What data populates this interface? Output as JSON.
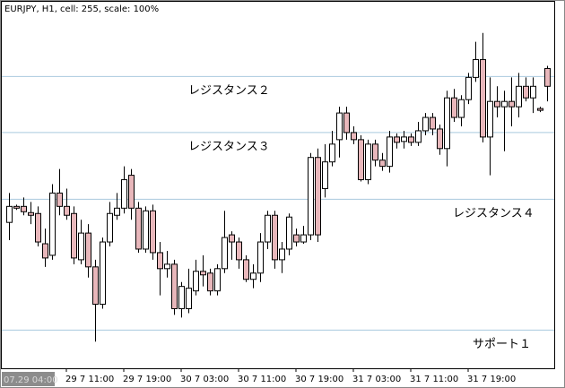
{
  "chart_data": {
    "type": "candlestick",
    "title": "EURJPY, H1, cell: 255, scale: 100%",
    "cursor_label": "07.29 04:00",
    "categories": [
      null,
      null,
      null,
      null,
      null,
      null,
      null,
      null,
      "29 7 11:00",
      null,
      null,
      null,
      null,
      null,
      null,
      null,
      "29 7 19:00",
      null,
      null,
      null,
      null,
      null,
      null,
      null,
      "30 7 03:00",
      null,
      null,
      null,
      null,
      null,
      null,
      null,
      "30 7 11:00",
      null,
      null,
      null,
      null,
      null,
      null,
      null,
      "30 7 19:00",
      null,
      null,
      null,
      null,
      null,
      null,
      null,
      "31 7 03:00",
      null,
      null,
      null,
      null,
      null,
      null,
      null,
      "31 7 11:00",
      null,
      null,
      null,
      null,
      null,
      null,
      null,
      "31 7 19:00",
      null,
      null,
      null,
      null,
      null,
      null,
      null,
      null,
      null,
      null,
      null
    ],
    "open": [
      164,
      182,
      182,
      175,
      174,
      140,
      127,
      197,
      182,
      174,
      122,
      152,
      114,
      72,
      142,
      172,
      180,
      217,
      180,
      134,
      177,
      130,
      112,
      117,
      67,
      67,
      87,
      109,
      107,
      87,
      112,
      150,
      142,
      122,
      100,
      107,
      142,
      172,
      122,
      134,
      150,
      142,
      150,
      237,
      202,
      232,
      257,
      287,
      265,
      257,
      212,
      252,
      234,
      227,
      260,
      255,
      260,
      254,
      267,
      282,
      269,
      247,
      304,
      282,
      302,
      327,
      347,
      260,
      300,
      294,
      300,
      294,
      317,
      304,
      292,
      337
    ],
    "high": [
      197,
      184,
      192,
      187,
      182,
      157,
      207,
      224,
      202,
      182,
      167,
      162,
      122,
      147,
      187,
      197,
      227,
      224,
      187,
      182,
      184,
      142,
      132,
      122,
      97,
      112,
      122,
      127,
      112,
      117,
      177,
      154,
      147,
      127,
      117,
      152,
      177,
      177,
      142,
      174,
      157,
      160,
      242,
      247,
      252,
      267,
      294,
      294,
      272,
      262,
      257,
      257,
      242,
      267,
      264,
      267,
      264,
      277,
      287,
      287,
      274,
      312,
      314,
      307,
      332,
      367,
      377,
      327,
      317,
      312,
      327,
      332,
      327,
      327,
      294,
      340
    ],
    "low": [
      144,
      178,
      172,
      162,
      137,
      114,
      122,
      172,
      167,
      117,
      117,
      102,
      30,
      67,
      137,
      167,
      174,
      167,
      130,
      130,
      122,
      82,
      102,
      60,
      57,
      62,
      82,
      92,
      82,
      82,
      107,
      122,
      112,
      97,
      90,
      97,
      134,
      112,
      107,
      127,
      137,
      140,
      144,
      142,
      192,
      227,
      237,
      257,
      252,
      210,
      207,
      227,
      222,
      220,
      247,
      247,
      250,
      250,
      262,
      262,
      240,
      227,
      277,
      272,
      297,
      322,
      254,
      217,
      282,
      244,
      272,
      282,
      300,
      287,
      288,
      300
    ],
    "close": [
      182,
      180,
      176,
      172,
      142,
      124,
      197,
      182,
      172,
      124,
      152,
      114,
      72,
      142,
      174,
      180,
      212,
      180,
      134,
      177,
      130,
      112,
      117,
      67,
      92,
      90,
      109,
      105,
      87,
      112,
      147,
      142,
      122,
      100,
      107,
      142,
      172,
      122,
      134,
      170,
      142,
      150,
      237,
      150,
      232,
      252,
      287,
      265,
      257,
      212,
      252,
      234,
      227,
      260,
      254,
      260,
      254,
      267,
      282,
      269,
      247,
      304,
      282,
      302,
      327,
      347,
      260,
      300,
      294,
      300,
      294,
      317,
      304,
      317,
      290,
      317
    ],
    "up_color": "#ffffff",
    "down_color": "#e8b7bb",
    "ylim": [
      0,
      412
    ],
    "levels": [
      {
        "label": "レジスタンス２",
        "value": 328
      },
      {
        "label": "レジスタンス３",
        "value": 265
      },
      {
        "label": "レジスタンス４",
        "value": 190
      },
      {
        "label": "サポート１",
        "value": 43
      }
    ],
    "level_color": "#a9c9de"
  }
}
